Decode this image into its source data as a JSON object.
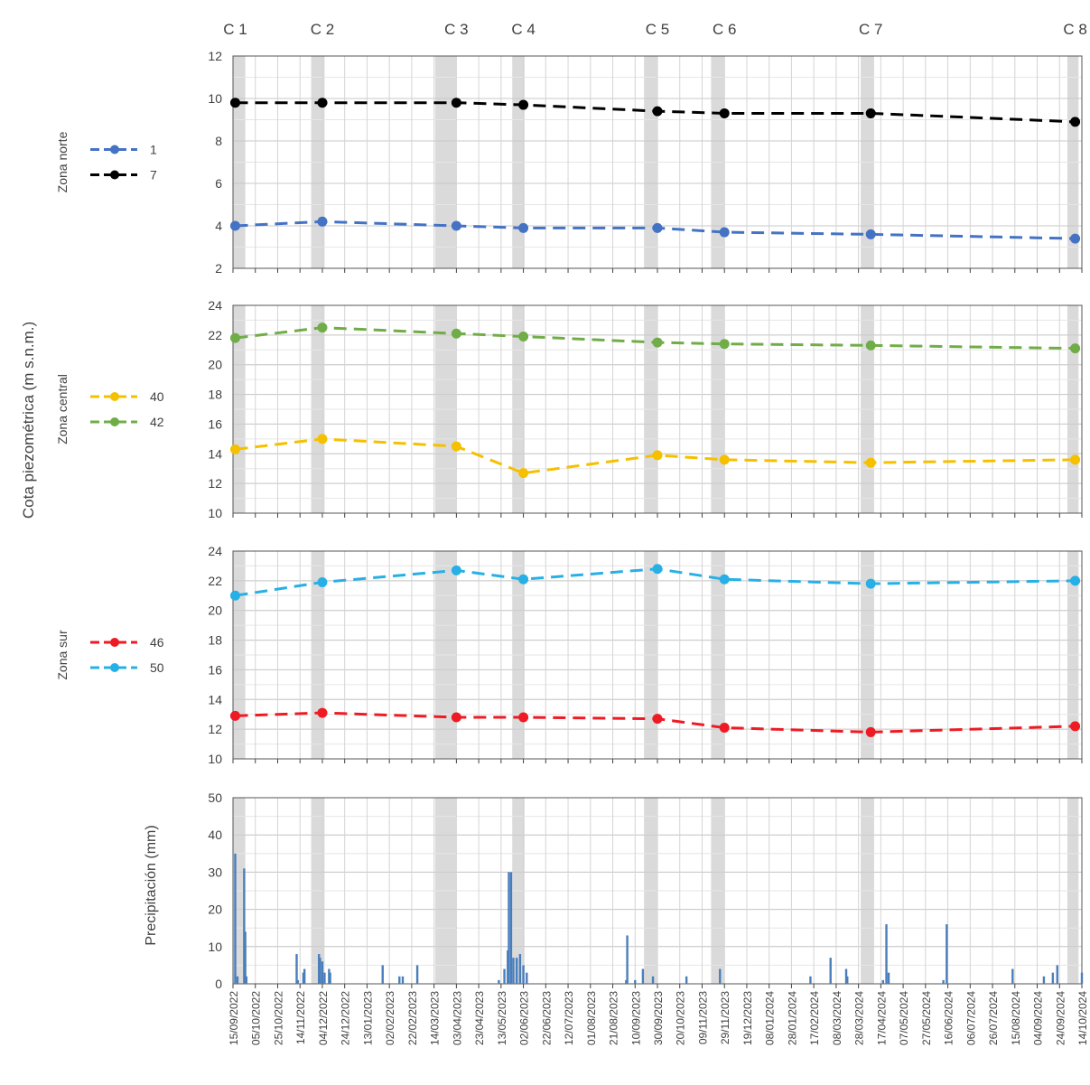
{
  "chart_data": {
    "type": "line",
    "campaigns": [
      {
        "label": "C 1",
        "date": "2022-09-17"
      },
      {
        "label": "C 2",
        "date": "2022-12-04"
      },
      {
        "label": "C 3",
        "date": "2023-04-03"
      },
      {
        "label": "C 4",
        "date": "2023-06-02"
      },
      {
        "label": "C 5",
        "date": "2023-09-30"
      },
      {
        "label": "C 6",
        "date": "2023-11-29"
      },
      {
        "label": "C 7",
        "date": "2024-04-08"
      },
      {
        "label": "C 8",
        "date": "2024-10-08"
      }
    ],
    "campaign_band_ranges": [
      [
        "2022-09-15",
        "2022-09-26"
      ],
      [
        "2022-11-24",
        "2022-12-06"
      ],
      [
        "2023-03-15",
        "2023-04-03"
      ],
      [
        "2023-05-23",
        "2023-06-03"
      ],
      [
        "2023-09-18",
        "2023-09-30"
      ],
      [
        "2023-11-17",
        "2023-11-29"
      ],
      [
        "2024-03-30",
        "2024-04-11"
      ],
      [
        "2024-10-01",
        "2024-10-11"
      ]
    ],
    "ylabel": "Cota piezométrica (m s.n.m.)",
    "panels": [
      {
        "zone": "Zona norte",
        "ylim": [
          2,
          12
        ],
        "yticks": [
          2,
          4,
          6,
          8,
          10,
          12
        ],
        "series": [
          {
            "name": "1",
            "color": "#4472c4",
            "values": [
              4.0,
              4.2,
              4.0,
              3.9,
              3.9,
              3.7,
              3.6,
              3.4
            ]
          },
          {
            "name": "7",
            "color": "#000000",
            "values": [
              9.8,
              9.8,
              9.8,
              9.7,
              9.4,
              9.3,
              9.3,
              8.9
            ]
          }
        ]
      },
      {
        "zone": "Zona central",
        "ylim": [
          10,
          24
        ],
        "yticks": [
          10,
          12,
          14,
          16,
          18,
          20,
          22,
          24
        ],
        "series": [
          {
            "name": "40",
            "color": "#f5c000",
            "values": [
              14.3,
              15.0,
              14.5,
              12.7,
              13.9,
              13.6,
              13.4,
              13.6
            ]
          },
          {
            "name": "42",
            "color": "#70ad47",
            "values": [
              21.8,
              22.5,
              22.1,
              21.9,
              21.5,
              21.4,
              21.3,
              21.1
            ]
          }
        ]
      },
      {
        "zone": "Zona sur",
        "ylim": [
          10,
          24
        ],
        "yticks": [
          10,
          12,
          14,
          16,
          18,
          20,
          22,
          24
        ],
        "series": [
          {
            "name": "46",
            "color": "#ee1b24",
            "values": [
              12.9,
              13.1,
              12.8,
              12.8,
              12.7,
              12.1,
              11.8,
              12.2
            ]
          },
          {
            "name": "50",
            "color": "#27b0e6",
            "values": [
              21.0,
              21.9,
              22.7,
              22.1,
              22.8,
              22.1,
              21.8,
              22.0
            ]
          }
        ]
      }
    ],
    "precipitation": {
      "type": "bar",
      "ylabel": "Precipitación (mm)",
      "ylim": [
        0,
        50
      ],
      "yticks": [
        0,
        10,
        20,
        30,
        40,
        50
      ],
      "color": "#4a7ebb",
      "dates": [
        "2022-09-17",
        "2022-09-19",
        "2022-09-25",
        "2022-09-26",
        "2022-09-27",
        "2022-11-11",
        "2022-11-12",
        "2022-11-17",
        "2022-11-18",
        "2022-12-01",
        "2022-12-02",
        "2022-12-04",
        "2022-12-06",
        "2022-12-10",
        "2022-12-11",
        "2023-01-27",
        "2023-02-11",
        "2023-02-14",
        "2023-02-27",
        "2023-05-11",
        "2023-05-16",
        "2023-05-19",
        "2023-05-20",
        "2023-05-22",
        "2023-05-24",
        "2023-05-27",
        "2023-05-30",
        "2023-06-02",
        "2023-06-05",
        "2023-09-02",
        "2023-09-03",
        "2023-09-10",
        "2023-09-17",
        "2023-09-26",
        "2023-10-26",
        "2023-11-25",
        "2024-02-14",
        "2024-03-03",
        "2024-03-17",
        "2024-03-18",
        "2024-04-19",
        "2024-04-22",
        "2024-04-24",
        "2024-06-12",
        "2024-06-15",
        "2024-08-13",
        "2024-09-10",
        "2024-09-18",
        "2024-09-22",
        "2024-10-14"
      ],
      "values": [
        35,
        2,
        31,
        14,
        2,
        8,
        1,
        3,
        4,
        8,
        7,
        6,
        3,
        4,
        3,
        5,
        2,
        2,
        5,
        1,
        4,
        9,
        30,
        30,
        7,
        7,
        8,
        5,
        3,
        1,
        13,
        1,
        4,
        2,
        2,
        4,
        2,
        7,
        4,
        2,
        1,
        16,
        3,
        1,
        16,
        4,
        2,
        3,
        5,
        3
      ],
      "xtick_labels": [
        "15/09/2022",
        "05/10/2022",
        "25/10/2022",
        "14/11/2022",
        "04/12/2022",
        "24/12/2022",
        "13/01/2023",
        "02/02/2023",
        "22/02/2023",
        "14/03/2023",
        "03/04/2023",
        "23/04/2023",
        "13/05/2023",
        "02/06/2023",
        "22/06/2023",
        "12/07/2023",
        "01/08/2023",
        "21/08/2023",
        "10/09/2023",
        "30/09/2023",
        "20/10/2023",
        "09/11/2023",
        "29/11/2023",
        "19/12/2023",
        "08/01/2024",
        "28/01/2024",
        "17/02/2024",
        "08/03/2024",
        "28/03/2024",
        "17/04/2024",
        "07/05/2024",
        "27/05/2024",
        "16/06/2024",
        "06/07/2024",
        "26/07/2024",
        "15/08/2024",
        "04/09/2024",
        "24/09/2024",
        "14/10/2024"
      ]
    }
  }
}
